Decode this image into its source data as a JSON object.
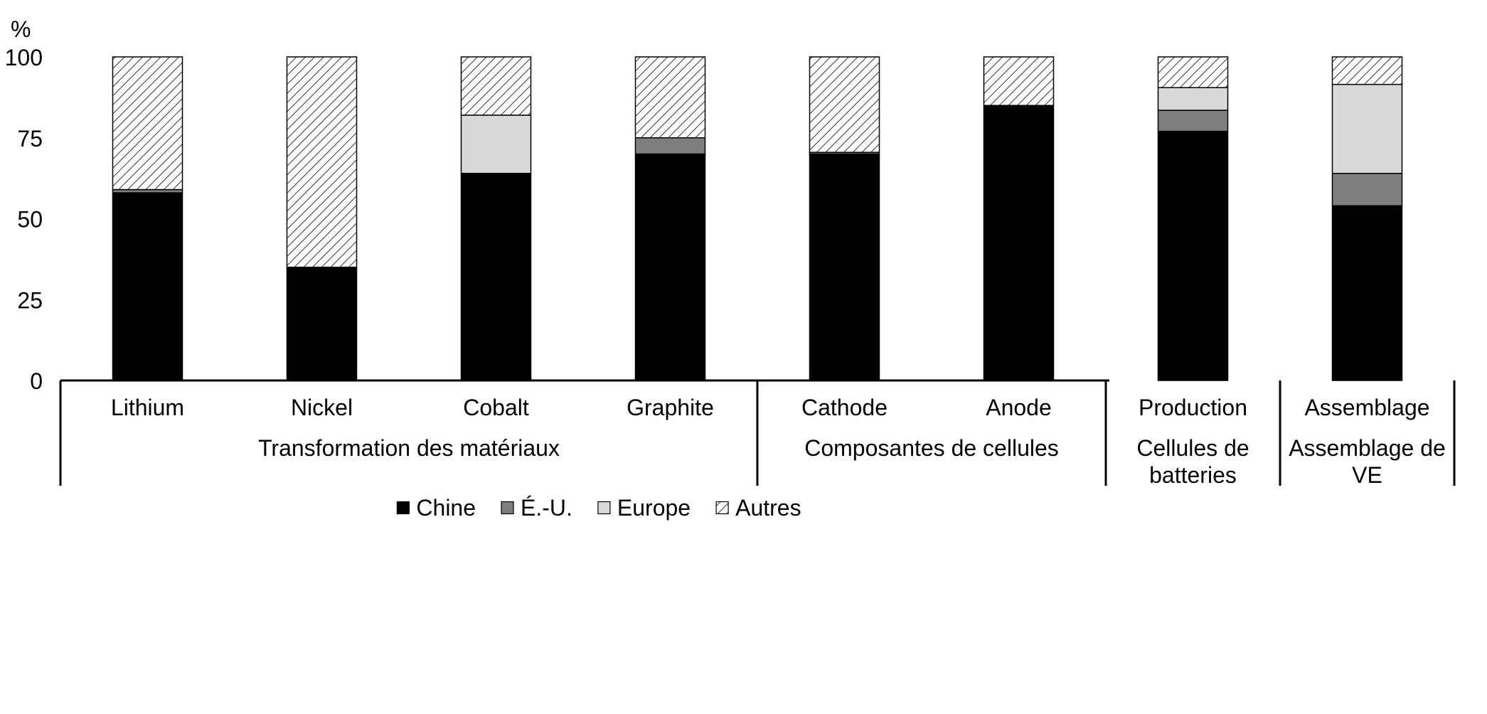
{
  "chart_data": {
    "type": "bar",
    "stacked": true,
    "ylabel": "%",
    "ylim": [
      0,
      100
    ],
    "yticks": [
      0,
      25,
      50,
      75,
      100
    ],
    "grid": false,
    "legend_position": "bottom",
    "categories": [
      "Lithium",
      "Nickel",
      "Cobalt",
      "Graphite",
      "Cathode",
      "Anode",
      "Production",
      "Assemblage"
    ],
    "groups": [
      {
        "label": "Transformation des matériaux",
        "count": 4
      },
      {
        "label": "Composantes de cellules",
        "count": 2
      },
      {
        "label": "Cellules de batteries",
        "count": 1
      },
      {
        "label": "Assemblage de VE",
        "count": 1
      }
    ],
    "series": [
      {
        "name": "Chine",
        "color": "#000000",
        "pattern": "solid",
        "values": [
          58,
          35,
          64,
          70,
          70,
          85,
          77,
          54
        ]
      },
      {
        "name": "É.-U.",
        "color": "#7f7f7f",
        "pattern": "solid",
        "values": [
          1,
          0,
          0,
          5,
          0.5,
          0,
          6.5,
          10
        ]
      },
      {
        "name": "Europe",
        "color": "#d9d9d9",
        "pattern": "solid",
        "values": [
          0,
          0,
          18,
          0,
          0,
          0,
          7,
          27.5
        ]
      },
      {
        "name": "Autres",
        "color": "#ffffff",
        "pattern": "diagonal-hatch",
        "values": [
          41,
          65,
          18,
          25,
          29.5,
          15,
          9.5,
          8.5
        ]
      }
    ]
  }
}
